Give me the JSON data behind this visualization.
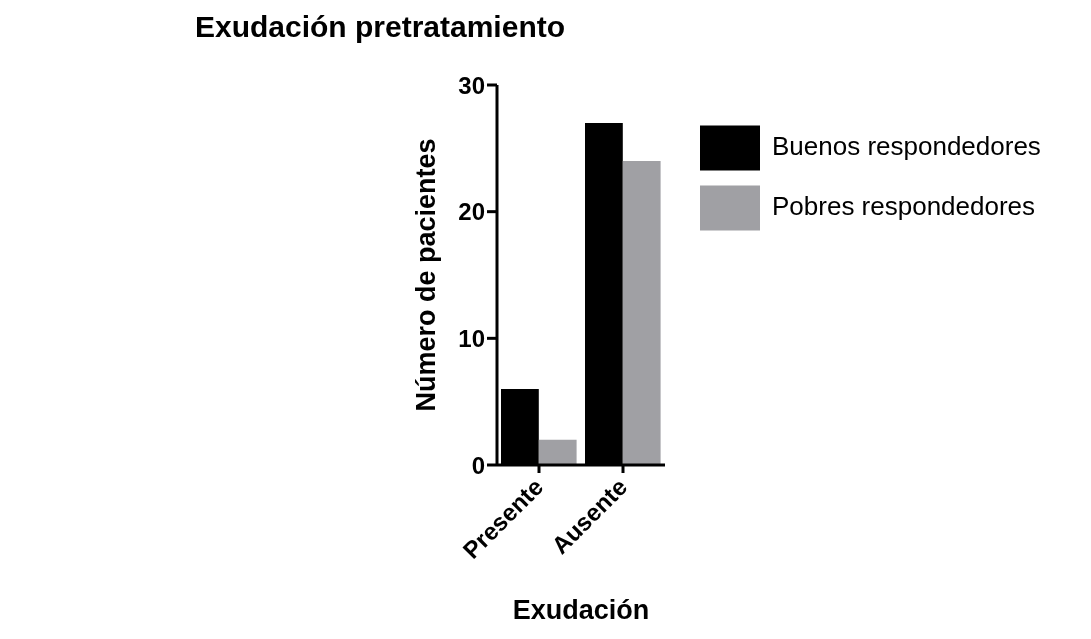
{
  "chart_data": {
    "type": "bar",
    "title": "Exudación pretratamiento",
    "xlabel": "Exudación",
    "ylabel": "Número de pacientes",
    "categories": [
      "Presente",
      "Ausente"
    ],
    "series": [
      {
        "name": "Buenos respondedores",
        "color": "#000000",
        "values": [
          6,
          27
        ]
      },
      {
        "name": "Pobres respondedores",
        "color": "#a0a0a4",
        "values": [
          2,
          24
        ]
      }
    ],
    "ylim": [
      0,
      30
    ],
    "yticks": [
      0,
      10,
      20,
      30
    ],
    "grid": false,
    "legend": "top right"
  }
}
